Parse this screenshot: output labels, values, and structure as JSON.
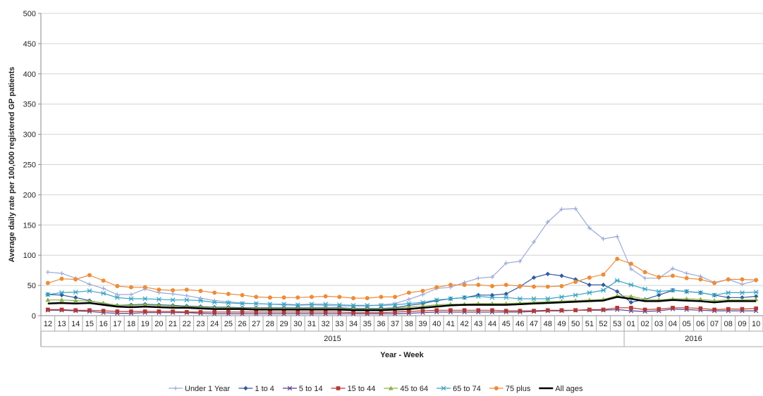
{
  "chart_data": {
    "type": "line",
    "ylabel": "Average daily rate per 100,000 registered GP patients",
    "xlabel": "Year - Week",
    "ylim": [
      0,
      500
    ],
    "yticks": [
      0,
      50,
      100,
      150,
      200,
      250,
      300,
      350,
      400,
      450,
      500
    ],
    "grid": "horizontal",
    "legend_position": "bottom",
    "categories": [
      "12",
      "13",
      "14",
      "15",
      "16",
      "17",
      "18",
      "19",
      "20",
      "21",
      "22",
      "23",
      "24",
      "25",
      "26",
      "27",
      "28",
      "29",
      "30",
      "31",
      "32",
      "33",
      "34",
      "35",
      "36",
      "37",
      "38",
      "39",
      "40",
      "41",
      "42",
      "43",
      "44",
      "45",
      "46",
      "47",
      "48",
      "49",
      "50",
      "51",
      "52",
      "53",
      "01",
      "02",
      "03",
      "04",
      "05",
      "06",
      "07",
      "08",
      "09",
      "10"
    ],
    "year_groups": [
      {
        "label": "2015",
        "start": 0,
        "end": 41
      },
      {
        "label": "2016",
        "start": 42,
        "end": 51
      }
    ],
    "series": [
      {
        "name": "Under 1 Year",
        "color": "#9aaad6",
        "marker": "plus",
        "values": [
          72,
          70,
          62,
          52,
          45,
          35,
          35,
          44,
          38,
          36,
          33,
          29,
          25,
          23,
          21,
          20,
          19,
          18,
          17,
          18,
          17,
          16,
          16,
          16,
          18,
          20,
          27,
          35,
          45,
          47,
          55,
          62,
          64,
          87,
          90,
          122,
          155,
          176,
          177,
          145,
          127,
          131,
          77,
          62,
          62,
          78,
          70,
          65,
          55,
          60,
          52,
          58
        ]
      },
      {
        "name": "1 to 4",
        "color": "#2f5a9e",
        "marker": "diamond",
        "values": [
          35,
          34,
          30,
          25,
          20,
          17,
          18,
          19,
          18,
          17,
          16,
          15,
          14,
          14,
          13,
          13,
          13,
          13,
          13,
          13,
          13,
          13,
          12,
          12,
          12,
          13,
          17,
          20,
          25,
          28,
          30,
          34,
          34,
          36,
          48,
          63,
          69,
          66,
          60,
          51,
          51,
          40,
          22,
          27,
          34,
          42,
          40,
          38,
          34,
          30,
          30,
          32
        ]
      },
      {
        "name": "5 to 14",
        "color": "#5a3f8a",
        "marker": "x",
        "values": [
          9,
          9,
          8,
          7,
          5,
          4,
          4,
          5,
          5,
          5,
          5,
          4,
          3,
          3,
          3,
          3,
          3,
          3,
          3,
          3,
          3,
          3,
          3,
          3,
          3,
          3,
          4,
          5,
          6,
          6,
          6,
          6,
          6,
          6,
          6,
          7,
          8,
          8,
          9,
          9,
          9,
          10,
          8,
          7,
          8,
          11,
          10,
          9,
          8,
          8,
          8,
          8
        ]
      },
      {
        "name": "15 to 44",
        "color": "#b23a37",
        "marker": "square",
        "values": [
          10,
          10,
          9,
          9,
          8,
          7,
          7,
          7,
          7,
          7,
          6,
          6,
          6,
          6,
          6,
          6,
          6,
          6,
          6,
          6,
          6,
          6,
          5,
          5,
          5,
          6,
          7,
          8,
          9,
          9,
          9,
          9,
          9,
          8,
          8,
          8,
          9,
          9,
          9,
          10,
          10,
          13,
          13,
          10,
          11,
          13,
          13,
          12,
          10,
          11,
          11,
          12
        ]
      },
      {
        "name": "45 to 64",
        "color": "#8cb24a",
        "marker": "triangle",
        "values": [
          26,
          26,
          25,
          24,
          21,
          17,
          17,
          18,
          17,
          16,
          15,
          14,
          13,
          13,
          12,
          12,
          12,
          12,
          12,
          12,
          12,
          12,
          11,
          11,
          11,
          12,
          14,
          16,
          18,
          19,
          19,
          20,
          20,
          20,
          21,
          22,
          23,
          24,
          25,
          26,
          27,
          33,
          32,
          27,
          26,
          28,
          28,
          27,
          25,
          26,
          26,
          27
        ]
      },
      {
        "name": "65 to 74",
        "color": "#3aa3c4",
        "marker": "asterisk",
        "values": [
          35,
          38,
          39,
          41,
          37,
          30,
          28,
          28,
          27,
          26,
          26,
          25,
          22,
          21,
          20,
          20,
          19,
          19,
          18,
          19,
          19,
          18,
          17,
          17,
          17,
          18,
          20,
          22,
          26,
          28,
          30,
          32,
          30,
          30,
          28,
          28,
          28,
          31,
          34,
          38,
          42,
          58,
          51,
          44,
          40,
          42,
          40,
          38,
          34,
          38,
          38,
          39
        ]
      },
      {
        "name": "75 plus",
        "color": "#ec8c3a",
        "marker": "circle",
        "values": [
          54,
          61,
          60,
          67,
          58,
          49,
          47,
          47,
          43,
          42,
          43,
          41,
          38,
          36,
          34,
          31,
          30,
          30,
          30,
          31,
          32,
          31,
          29,
          29,
          31,
          31,
          38,
          41,
          47,
          51,
          51,
          51,
          49,
          51,
          49,
          48,
          48,
          49,
          56,
          63,
          68,
          94,
          86,
          72,
          64,
          66,
          62,
          60,
          54,
          60,
          60,
          59
        ]
      },
      {
        "name": "All ages",
        "color": "#000000",
        "marker": "none",
        "values": [
          20,
          21,
          20,
          21,
          18,
          15,
          14,
          15,
          14,
          13,
          13,
          12,
          11,
          11,
          11,
          10,
          10,
          10,
          10,
          10,
          10,
          10,
          9,
          9,
          9,
          10,
          11,
          13,
          15,
          17,
          18,
          18,
          18,
          18,
          19,
          20,
          21,
          22,
          23,
          24,
          25,
          31,
          28,
          24,
          24,
          26,
          25,
          24,
          22,
          24,
          24,
          24
        ]
      }
    ]
  }
}
